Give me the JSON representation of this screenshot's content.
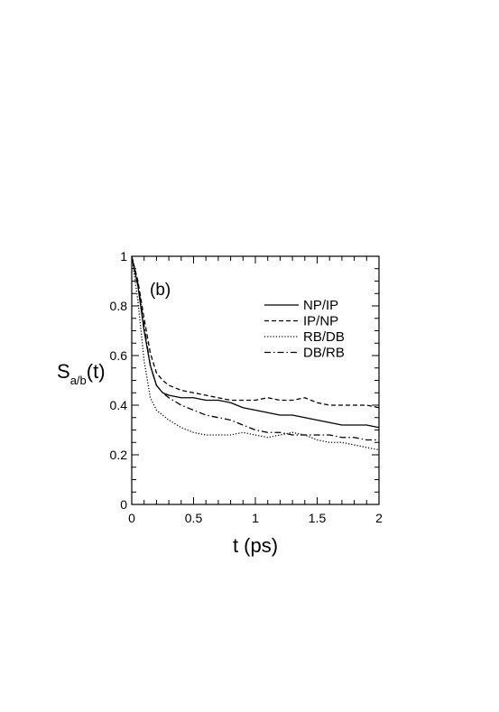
{
  "chart_data": {
    "type": "line",
    "panel_label": "(b)",
    "xlabel": "t (ps)",
    "ylabel": {
      "main": "S",
      "subscript": "a/b",
      "suffix": "(t)"
    },
    "xlim": [
      0,
      2
    ],
    "ylim": [
      0,
      1
    ],
    "xticks": [
      0,
      0.5,
      1,
      1.5,
      2
    ],
    "xtick_labels": [
      "0",
      "0.5",
      "1",
      "1.5",
      "2"
    ],
    "yticks": [
      0,
      0.2,
      0.4,
      0.6,
      0.8,
      1
    ],
    "ytick_labels": [
      "0",
      "0.2",
      "0.4",
      "0.6",
      "0.8",
      "1"
    ],
    "grid": false,
    "legend_position": "top-right",
    "series": [
      {
        "name": "NP/IP",
        "style": "solid",
        "x": [
          0,
          0.05,
          0.1,
          0.15,
          0.2,
          0.25,
          0.3,
          0.4,
          0.5,
          0.6,
          0.7,
          0.8,
          0.9,
          1.0,
          1.1,
          1.2,
          1.3,
          1.4,
          1.5,
          1.6,
          1.7,
          1.8,
          1.9,
          2.0
        ],
        "values": [
          1.0,
          0.88,
          0.7,
          0.56,
          0.48,
          0.45,
          0.44,
          0.43,
          0.43,
          0.42,
          0.42,
          0.41,
          0.39,
          0.38,
          0.37,
          0.36,
          0.36,
          0.35,
          0.34,
          0.33,
          0.32,
          0.32,
          0.32,
          0.31
        ]
      },
      {
        "name": "IP/NP",
        "style": "dashed",
        "x": [
          0,
          0.05,
          0.1,
          0.15,
          0.2,
          0.25,
          0.3,
          0.4,
          0.5,
          0.6,
          0.7,
          0.8,
          0.9,
          1.0,
          1.1,
          1.2,
          1.3,
          1.4,
          1.5,
          1.6,
          1.7,
          1.8,
          1.9,
          2.0
        ],
        "values": [
          1.0,
          0.9,
          0.75,
          0.61,
          0.53,
          0.5,
          0.48,
          0.46,
          0.45,
          0.44,
          0.43,
          0.42,
          0.42,
          0.42,
          0.43,
          0.42,
          0.42,
          0.43,
          0.41,
          0.4,
          0.4,
          0.4,
          0.4,
          0.39
        ]
      },
      {
        "name": "RB/DB",
        "style": "dotted",
        "x": [
          0,
          0.05,
          0.1,
          0.15,
          0.2,
          0.25,
          0.3,
          0.4,
          0.5,
          0.6,
          0.7,
          0.8,
          0.9,
          1.0,
          1.1,
          1.2,
          1.3,
          1.4,
          1.5,
          1.6,
          1.7,
          1.8,
          1.9,
          2.0
        ],
        "values": [
          1.0,
          0.82,
          0.58,
          0.43,
          0.38,
          0.36,
          0.34,
          0.31,
          0.29,
          0.28,
          0.28,
          0.28,
          0.29,
          0.28,
          0.27,
          0.28,
          0.29,
          0.28,
          0.26,
          0.25,
          0.25,
          0.24,
          0.23,
          0.22
        ]
      },
      {
        "name": "DB/RB",
        "style": "dashdot",
        "x": [
          0,
          0.05,
          0.1,
          0.15,
          0.2,
          0.25,
          0.3,
          0.4,
          0.5,
          0.6,
          0.7,
          0.8,
          0.9,
          1.0,
          1.1,
          1.2,
          1.3,
          1.4,
          1.5,
          1.6,
          1.7,
          1.8,
          1.9,
          2.0
        ],
        "values": [
          1.0,
          0.89,
          0.72,
          0.56,
          0.48,
          0.45,
          0.43,
          0.4,
          0.38,
          0.36,
          0.35,
          0.34,
          0.32,
          0.3,
          0.29,
          0.29,
          0.28,
          0.28,
          0.28,
          0.28,
          0.27,
          0.27,
          0.26,
          0.26
        ]
      }
    ]
  }
}
